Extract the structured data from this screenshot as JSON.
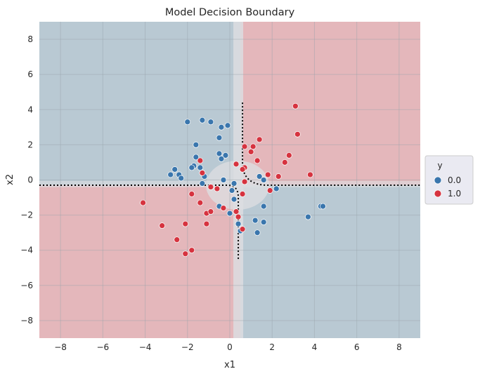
{
  "chart_data": {
    "type": "scatter",
    "title": "Model Decision Boundary",
    "xlabel": "x1",
    "ylabel": "x2",
    "xlim": [
      -9,
      9
    ],
    "ylim": [
      -9,
      9
    ],
    "xticks": [
      -8,
      -6,
      -4,
      -2,
      0,
      2,
      4,
      6,
      8
    ],
    "yticks": [
      -8,
      -6,
      -4,
      -2,
      0,
      2,
      4,
      6,
      8
    ],
    "x_tick_labels": [
      "−8",
      "−6",
      "−4",
      "−2",
      "0",
      "2",
      "4",
      "6",
      "8"
    ],
    "y_tick_labels": [
      "−8",
      "−6",
      "−4",
      "−2",
      "0",
      "2",
      "4",
      "6",
      "8"
    ],
    "grid": true,
    "legend": {
      "title": "y",
      "placement": "right",
      "entries": [
        {
          "label": "0.0",
          "color": "#3a76ad"
        },
        {
          "label": "1.0",
          "color": "#d6333f"
        }
      ]
    },
    "background_regions": {
      "class_0_color": "#b9c9d3",
      "class_1_color": "#e4b7bb",
      "uncertain_color": "#dcdde1",
      "boundary_x1": 0.5,
      "boundary_x2": -0.3
    },
    "series": [
      {
        "name": "0.0",
        "color": "#3a76ad",
        "points": [
          [
            -2.0,
            3.3
          ],
          [
            -1.3,
            3.4
          ],
          [
            -0.9,
            3.3
          ],
          [
            -0.4,
            3.0
          ],
          [
            -0.1,
            3.1
          ],
          [
            -1.6,
            2.0
          ],
          [
            -0.5,
            2.4
          ],
          [
            -1.6,
            1.3
          ],
          [
            -0.5,
            1.5
          ],
          [
            -0.2,
            1.4
          ],
          [
            -0.4,
            1.2
          ],
          [
            -1.7,
            0.8
          ],
          [
            -1.8,
            0.7
          ],
          [
            -1.4,
            0.7
          ],
          [
            -1.3,
            0.4
          ],
          [
            -2.6,
            0.6
          ],
          [
            -2.8,
            0.3
          ],
          [
            -2.4,
            0.3
          ],
          [
            -2.3,
            0.1
          ],
          [
            -1.2,
            0.2
          ],
          [
            -1.3,
            -0.2
          ],
          [
            -0.3,
            0.0
          ],
          [
            0.2,
            -0.2
          ],
          [
            0.1,
            -0.6
          ],
          [
            0.2,
            -1.1
          ],
          [
            -0.5,
            -1.5
          ],
          [
            0.0,
            -1.9
          ],
          [
            0.4,
            -2.5
          ],
          [
            0.5,
            -2.9
          ],
          [
            1.4,
            0.2
          ],
          [
            1.6,
            0.0
          ],
          [
            2.2,
            -0.5
          ],
          [
            1.2,
            -2.3
          ],
          [
            1.6,
            -2.4
          ],
          [
            1.6,
            -1.5
          ],
          [
            1.3,
            -3.0
          ],
          [
            3.7,
            -2.1
          ],
          [
            4.3,
            -1.5
          ],
          [
            4.4,
            -1.5
          ]
        ]
      },
      {
        "name": "1.0",
        "color": "#d6333f",
        "points": [
          [
            3.1,
            4.2
          ],
          [
            3.2,
            2.6
          ],
          [
            0.7,
            1.9
          ],
          [
            1.1,
            1.9
          ],
          [
            1.4,
            2.3
          ],
          [
            1.0,
            1.6
          ],
          [
            1.3,
            1.1
          ],
          [
            2.8,
            1.4
          ],
          [
            2.6,
            1.0
          ],
          [
            0.7,
            0.7
          ],
          [
            0.6,
            0.6
          ],
          [
            1.8,
            0.3
          ],
          [
            2.3,
            0.2
          ],
          [
            3.8,
            0.3
          ],
          [
            -1.4,
            1.1
          ],
          [
            -1.3,
            0.4
          ],
          [
            -0.9,
            -0.4
          ],
          [
            0.3,
            0.9
          ],
          [
            0.7,
            -0.1
          ],
          [
            0.6,
            -0.8
          ],
          [
            1.9,
            -0.6
          ],
          [
            -1.8,
            -0.8
          ],
          [
            -0.6,
            -0.5
          ],
          [
            -0.3,
            -1.6
          ],
          [
            -1.4,
            -1.3
          ],
          [
            -1.1,
            -1.9
          ],
          [
            -0.9,
            -1.8
          ],
          [
            0.3,
            -1.8
          ],
          [
            0.4,
            -2.1
          ],
          [
            0.6,
            -2.8
          ],
          [
            -4.1,
            -1.3
          ],
          [
            -3.2,
            -2.6
          ],
          [
            -2.1,
            -2.5
          ],
          [
            -2.5,
            -3.4
          ],
          [
            -1.8,
            -4.0
          ],
          [
            -2.1,
            -4.2
          ],
          [
            -1.1,
            -2.5
          ]
        ]
      }
    ]
  }
}
